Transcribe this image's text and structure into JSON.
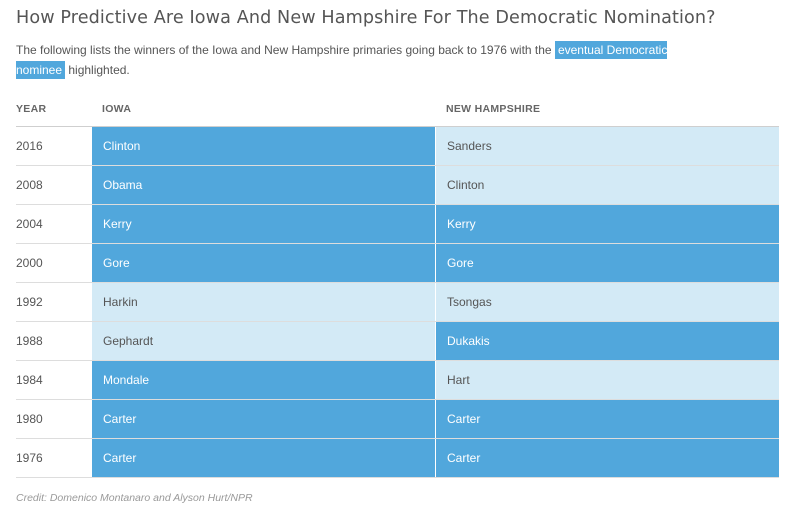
{
  "title": "How Predictive Are Iowa And New Hampshire For The Democratic Nomination?",
  "description": {
    "before": "The following lists the winners of the Iowa and New Hampshire primaries going back to 1976 with the ",
    "highlight": "eventual Democratic nominee",
    "after": " highlighted."
  },
  "chart_data": {
    "type": "table",
    "columns": [
      "YEAR",
      "IOWA",
      "NEW HAMPSHIRE"
    ],
    "rows": [
      {
        "year": "2016",
        "iowa": "Clinton",
        "iowa_nominee": true,
        "nh": "Sanders",
        "nh_nominee": false
      },
      {
        "year": "2008",
        "iowa": "Obama",
        "iowa_nominee": true,
        "nh": "Clinton",
        "nh_nominee": false
      },
      {
        "year": "2004",
        "iowa": "Kerry",
        "iowa_nominee": true,
        "nh": "Kerry",
        "nh_nominee": true
      },
      {
        "year": "2000",
        "iowa": "Gore",
        "iowa_nominee": true,
        "nh": "Gore",
        "nh_nominee": true
      },
      {
        "year": "1992",
        "iowa": "Harkin",
        "iowa_nominee": false,
        "nh": "Tsongas",
        "nh_nominee": false
      },
      {
        "year": "1988",
        "iowa": "Gephardt",
        "iowa_nominee": false,
        "nh": "Dukakis",
        "nh_nominee": true
      },
      {
        "year": "1984",
        "iowa": "Mondale",
        "iowa_nominee": true,
        "nh": "Hart",
        "nh_nominee": false
      },
      {
        "year": "1980",
        "iowa": "Carter",
        "iowa_nominee": true,
        "nh": "Carter",
        "nh_nominee": true
      },
      {
        "year": "1976",
        "iowa": "Carter",
        "iowa_nominee": true,
        "nh": "Carter",
        "nh_nominee": true
      }
    ],
    "colors": {
      "nominee": "#51a7dc",
      "other": "#d3eaf6"
    }
  },
  "credit": "Credit: Domenico Montanaro and Alyson Hurt/NPR"
}
